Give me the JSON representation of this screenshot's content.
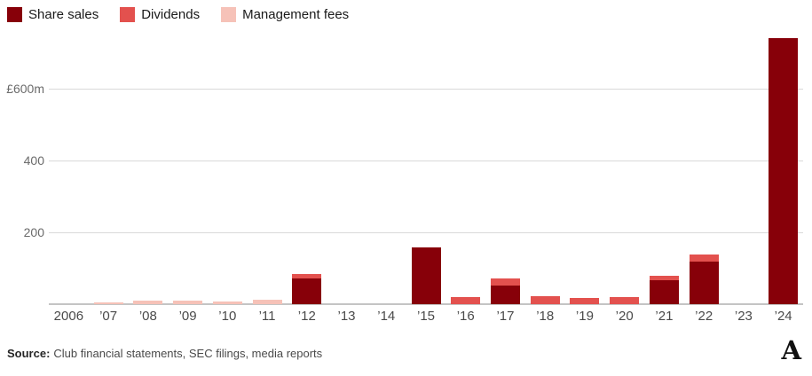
{
  "legend": {
    "items": [
      {
        "label": "Share sales",
        "color": "#870009"
      },
      {
        "label": "Dividends",
        "color": "#e3514e"
      },
      {
        "label": "Management fees",
        "color": "#f6c2b8"
      }
    ]
  },
  "chart_data": {
    "type": "bar",
    "stacked": true,
    "title": "",
    "xlabel": "",
    "ylabel": "",
    "unit": "£m",
    "grid": "horizontal",
    "legend_position": "top-left",
    "ylim": [
      0,
      760
    ],
    "categories": [
      "2006",
      "’07",
      "’08",
      "’09",
      "’10",
      "’11",
      "’12",
      "’13",
      "’14",
      "’15",
      "’16",
      "’17",
      "’18",
      "’19",
      "’20",
      "’21",
      "’22",
      "’23",
      "’24"
    ],
    "series": [
      {
        "name": "Share sales",
        "color": "#870009",
        "values": [
          0,
          0,
          0,
          0,
          0,
          0,
          72,
          0,
          0,
          158,
          0,
          52,
          0,
          0,
          0,
          67,
          119,
          0,
          740
        ]
      },
      {
        "name": "Dividends",
        "color": "#e3514e",
        "values": [
          0,
          0,
          0,
          0,
          0,
          0,
          12,
          0,
          0,
          0,
          19,
          20,
          21,
          18,
          19,
          11,
          20,
          0,
          0
        ]
      },
      {
        "name": "Management fees",
        "color": "#f6c2b8",
        "values": [
          0,
          6,
          9,
          9,
          8,
          12,
          0,
          0,
          0,
          0,
          0,
          0,
          0,
          0,
          0,
          0,
          0,
          0,
          0
        ]
      }
    ],
    "y_ticks": [
      {
        "value": 600,
        "label": "£600m"
      },
      {
        "value": 400,
        "label": "400"
      },
      {
        "value": 200,
        "label": "200"
      }
    ]
  },
  "source": {
    "label": "Source:",
    "text": "Club financial statements, SEC filings, media reports"
  },
  "footer": {
    "logo_letter": "A"
  }
}
